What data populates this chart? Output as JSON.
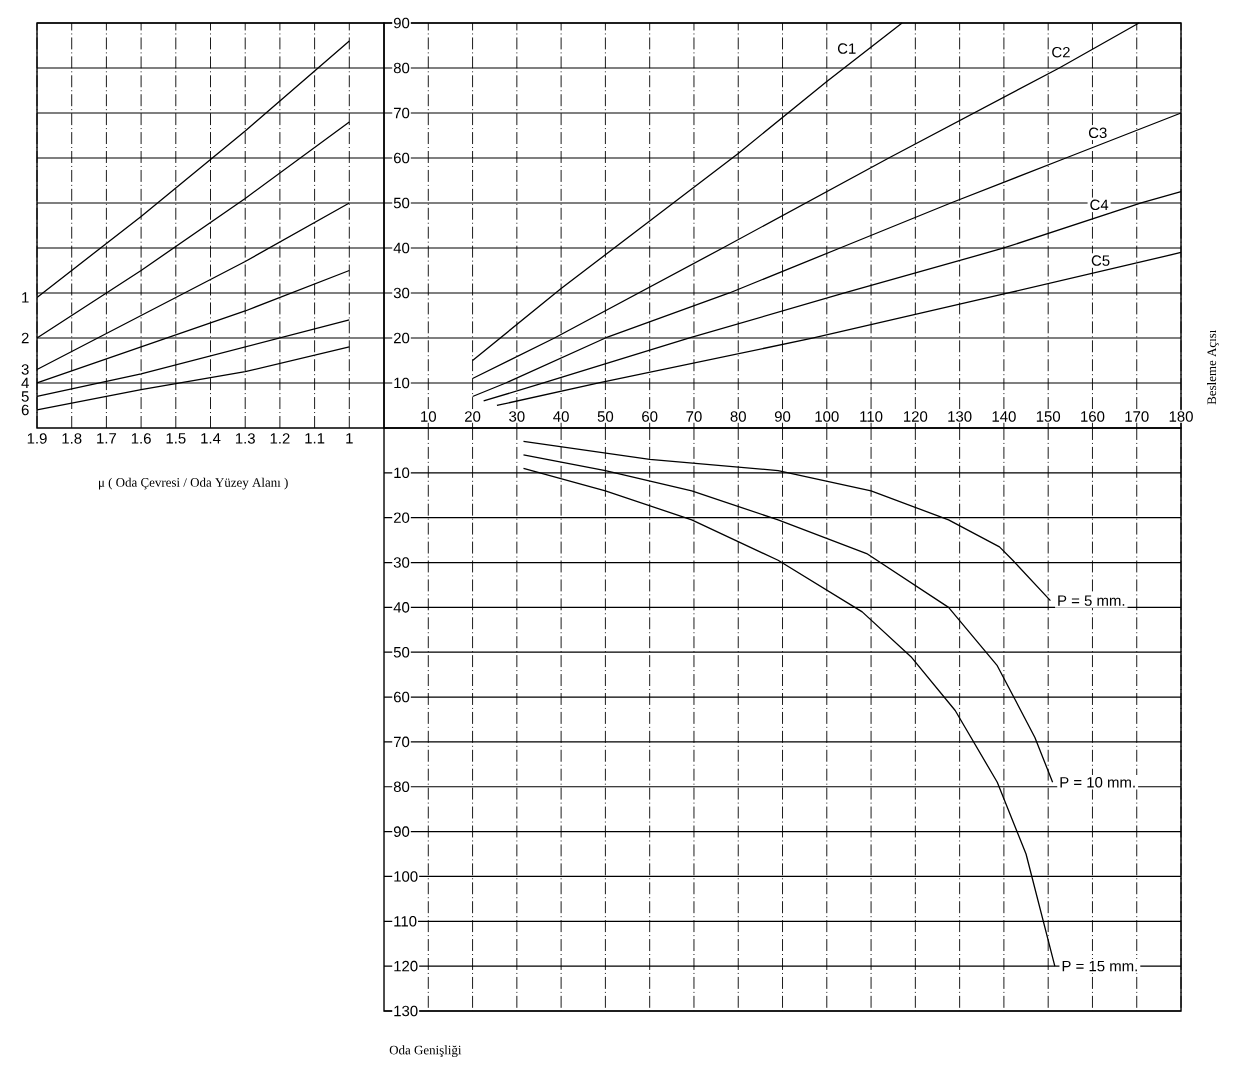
{
  "chart_data": [
    {
      "type": "line",
      "xlabel": "μ ( Oda Çevresi / Oda Yüzey Alanı )",
      "xlim": [
        1.9,
        0.9
      ],
      "xticks": [
        1.9,
        1.8,
        1.7,
        1.6,
        1.5,
        1.4,
        1.3,
        1.2,
        1.1,
        1
      ],
      "ylim": [
        0,
        90
      ],
      "yticks": [
        10,
        20,
        30,
        40,
        50,
        60,
        70,
        80,
        90
      ],
      "tick_labels": "x",
      "grid": true,
      "x": [
        1.9,
        1.6,
        1.3,
        1.0
      ],
      "series": [
        {
          "name": "1",
          "color": "#000000",
          "values": [
            29,
            47,
            66,
            86
          ]
        },
        {
          "name": "2",
          "color": "#000000",
          "values": [
            20,
            35,
            51,
            68
          ]
        },
        {
          "name": "3",
          "color": "#000000",
          "values": [
            13,
            25,
            37,
            50
          ]
        },
        {
          "name": "4",
          "color": "#000000",
          "values": [
            10,
            18,
            26,
            35
          ]
        },
        {
          "name": "5",
          "color": "#000000",
          "values": [
            7,
            12,
            18,
            24
          ]
        },
        {
          "name": "6",
          "color": "#000000",
          "values": [
            4,
            8.5,
            12.5,
            18
          ]
        }
      ]
    },
    {
      "type": "line",
      "ylabel": "Besleme Açısı",
      "xlim": [
        0,
        180
      ],
      "xticks": [
        10,
        20,
        30,
        40,
        50,
        60,
        70,
        80,
        90,
        100,
        110,
        120,
        130,
        140,
        150,
        160,
        170,
        180
      ],
      "ylim": [
        0,
        90
      ],
      "yticks": [
        10,
        20,
        30,
        40,
        50,
        60,
        70,
        80,
        90
      ],
      "grid": true,
      "series": [
        {
          "name": "C1",
          "color": "#000000",
          "x": [
            20,
            40,
            60,
            80,
            100,
            117
          ],
          "values": [
            15,
            31,
            46,
            61,
            77,
            90
          ]
        },
        {
          "name": "C2",
          "color": "#000000",
          "x": [
            20,
            38.5,
            76.5,
            114,
            152.5,
            170.5
          ],
          "values": [
            11,
            20,
            40,
            60,
            80,
            90
          ]
        },
        {
          "name": "C3",
          "color": "#000000",
          "x": [
            20,
            27.5,
            50,
            78,
            103,
            128,
            154,
            180
          ],
          "values": [
            7,
            10,
            20,
            30,
            40,
            50,
            60,
            70
          ]
        },
        {
          "name": "C4",
          "color": "#000000",
          "x": [
            22.5,
            36,
            69,
            104,
            140,
            171,
            180
          ],
          "values": [
            6,
            10,
            20,
            30,
            40,
            50,
            52.5
          ]
        },
        {
          "name": "C5",
          "color": "#000000",
          "x": [
            25.5,
            48.5,
            97,
            141,
            180
          ],
          "values": [
            5,
            10,
            20,
            30,
            39
          ]
        }
      ]
    },
    {
      "type": "line",
      "xlabel": "Oda Genişliği",
      "xlim": [
        0,
        180
      ],
      "xticks": [
        10,
        20,
        30,
        40,
        50,
        60,
        70,
        80,
        90,
        100,
        110,
        120,
        130,
        140,
        150,
        160,
        170,
        180
      ],
      "ylim": [
        130,
        0
      ],
      "yticks": [
        10,
        20,
        30,
        40,
        50,
        60,
        70,
        80,
        90,
        100,
        110,
        120,
        130
      ],
      "tick_labels": "y",
      "grid": true,
      "series": [
        {
          "name": "P = 5 mm.",
          "color": "#000000",
          "x": [
            31.5,
            60,
            89,
            110,
            127.5,
            139,
            142,
            150.5
          ],
          "values": [
            3,
            7,
            9.5,
            14,
            20.5,
            26.5,
            29.5,
            38.5
          ]
        },
        {
          "name": "P = 10 mm.",
          "color": "#000000",
          "x": [
            31.5,
            50,
            69.5,
            89,
            109,
            127.5,
            138.5,
            147,
            151
          ],
          "values": [
            6,
            9.5,
            14,
            20.5,
            28,
            40,
            53,
            69,
            79
          ]
        },
        {
          "name": "P = 15 mm.",
          "color": "#000000",
          "x": [
            31.5,
            50,
            69.5,
            89,
            108,
            119,
            129,
            138.5,
            145,
            151.5
          ],
          "values": [
            9,
            14,
            20.5,
            29.5,
            41,
            51,
            63,
            79,
            95,
            120
          ]
        }
      ]
    }
  ]
}
